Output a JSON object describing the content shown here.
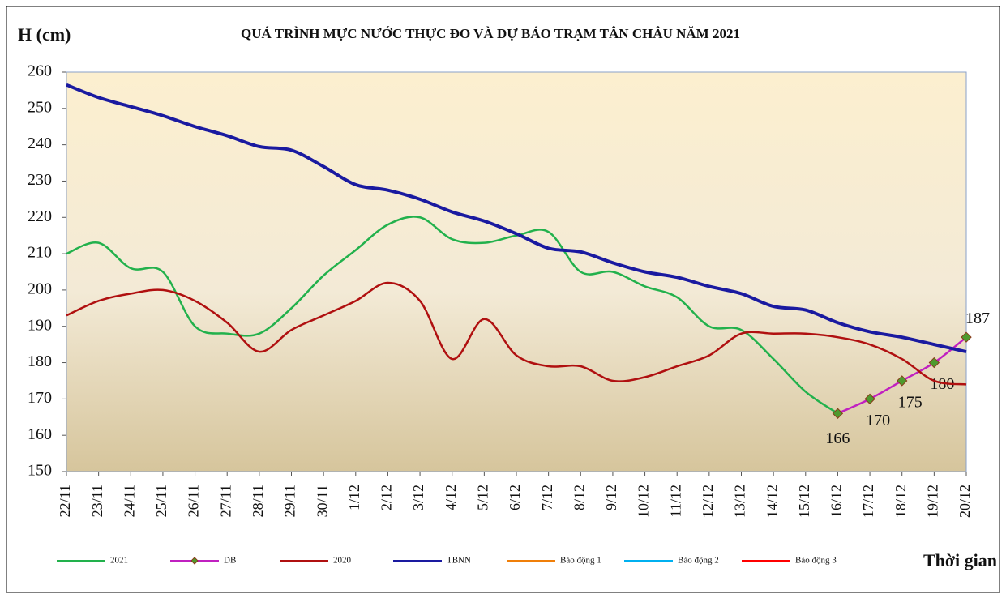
{
  "chart_data": {
    "type": "line",
    "title": "QUÁ TRÌNH MỰC NƯỚC THỰC ĐO VÀ DỰ BÁO TRẠM TÂN CHÂU NĂM 2021",
    "y_label": "H (cm)",
    "x_label": "Thời gian",
    "categories": [
      "22/11",
      "23/11",
      "24/11",
      "25/11",
      "26/11",
      "27/11",
      "28/11",
      "29/11",
      "30/11",
      "1/12",
      "2/12",
      "3/12",
      "4/12",
      "5/12",
      "6/12",
      "7/12",
      "8/12",
      "9/12",
      "10/12",
      "11/12",
      "12/12",
      "13/12",
      "14/12",
      "15/12",
      "16/12",
      "17/12",
      "18/12",
      "19/12",
      "20/12"
    ],
    "ylim": [
      150,
      260
    ],
    "yticks": [
      150,
      160,
      170,
      180,
      190,
      200,
      210,
      220,
      230,
      240,
      250,
      260
    ],
    "legend": "bottom",
    "series": [
      {
        "name": "2021",
        "color": "#22b14c",
        "values": [
          210,
          213,
          206,
          205,
          190,
          188,
          188,
          195,
          204,
          211,
          218,
          220,
          214,
          213,
          215,
          216,
          205,
          205,
          201,
          198,
          190,
          189,
          181,
          172,
          166,
          null,
          null,
          null,
          null
        ]
      },
      {
        "name": "DB",
        "color": "#c020c0",
        "marker": "diamond",
        "marker_color": "#4e9a2e",
        "data_labels": true,
        "values": [
          null,
          null,
          null,
          null,
          null,
          null,
          null,
          null,
          null,
          null,
          null,
          null,
          null,
          null,
          null,
          null,
          null,
          null,
          null,
          null,
          null,
          null,
          null,
          null,
          166,
          170,
          175,
          180,
          187
        ]
      },
      {
        "name": "2020",
        "color": "#b01010",
        "values": [
          193,
          197,
          199,
          200,
          197,
          191,
          183,
          189,
          193,
          197,
          202,
          197,
          181,
          192,
          182,
          179,
          179,
          175,
          176,
          179,
          182,
          188,
          188,
          188,
          187,
          185,
          181,
          175,
          174
        ]
      },
      {
        "name": "TBNN",
        "color": "#1a1aa0",
        "width": 4,
        "values": [
          256.5,
          253,
          250.5,
          248,
          245,
          242.5,
          239.5,
          238.5,
          234,
          229,
          227.5,
          225,
          221.5,
          219,
          215.5,
          211.5,
          210.5,
          207.5,
          205,
          203.5,
          201,
          199,
          195.5,
          194.5,
          191,
          188.5,
          187,
          185,
          183
        ]
      },
      {
        "name": "Báo động 1",
        "color": "#f07f09",
        "values": [
          null,
          null,
          null,
          null,
          null,
          null,
          null,
          null,
          null,
          null,
          null,
          null,
          null,
          null,
          null,
          null,
          null,
          null,
          null,
          null,
          null,
          null,
          null,
          null,
          null,
          null,
          null,
          null,
          null
        ]
      },
      {
        "name": "Báo động 2",
        "color": "#00b0f0",
        "values": [
          null,
          null,
          null,
          null,
          null,
          null,
          null,
          null,
          null,
          null,
          null,
          null,
          null,
          null,
          null,
          null,
          null,
          null,
          null,
          null,
          null,
          null,
          null,
          null,
          null,
          null,
          null,
          null,
          null
        ]
      },
      {
        "name": "Báo động 3",
        "color": "#ff0000",
        "values": [
          null,
          null,
          null,
          null,
          null,
          null,
          null,
          null,
          null,
          null,
          null,
          null,
          null,
          null,
          null,
          null,
          null,
          null,
          null,
          null,
          null,
          null,
          null,
          null,
          null,
          null,
          null,
          null,
          null
        ]
      }
    ]
  }
}
